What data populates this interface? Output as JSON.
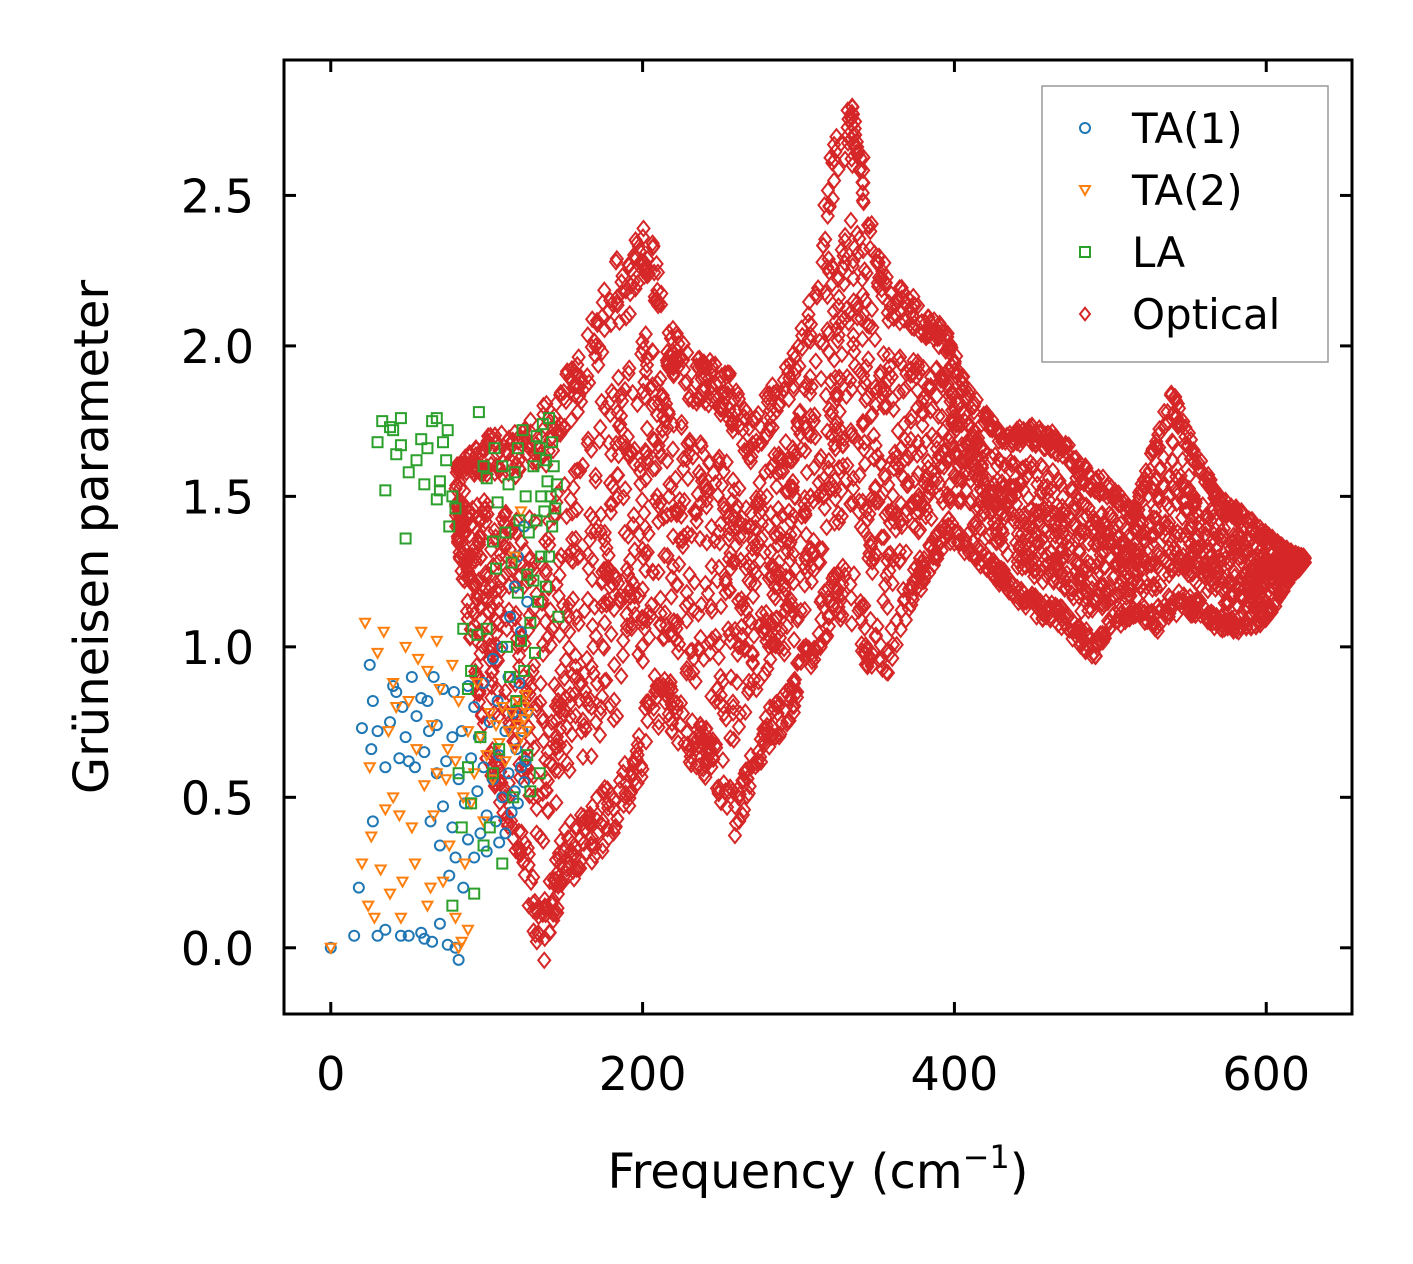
{
  "chart_data": {
    "type": "scatter",
    "xlabel": "Frequency (cm",
    "xlabel_sup": "−1",
    "xlabel_close": ")",
    "ylabel": "Grüneisen parameter",
    "xlim": [
      -30,
      655
    ],
    "ylim": [
      -0.22,
      2.95
    ],
    "xticks": [
      0,
      200,
      400,
      600
    ],
    "xtick_labels": [
      "0",
      "200",
      "400",
      "600"
    ],
    "yticks": [
      0.0,
      0.5,
      1.0,
      1.5,
      2.0,
      2.5
    ],
    "ytick_labels": [
      "0.0",
      "0.5",
      "1.0",
      "1.5",
      "2.0",
      "2.5"
    ],
    "legend_position": "top-right",
    "series": [
      {
        "name": "TA(1)",
        "marker": "circle",
        "color": "#1f77b4",
        "points": [
          [
            0,
            0
          ],
          [
            15,
            0.04
          ],
          [
            18,
            0.2
          ],
          [
            20,
            0.73
          ],
          [
            25,
            0.94
          ],
          [
            26,
            0.66
          ],
          [
            27,
            0.82
          ],
          [
            27,
            0.42
          ],
          [
            30,
            0.72
          ],
          [
            30,
            0.04
          ],
          [
            35,
            0.6
          ],
          [
            35,
            0.06
          ],
          [
            38,
            0.75
          ],
          [
            40,
            0.87
          ],
          [
            42,
            0.85
          ],
          [
            44,
            0.63
          ],
          [
            45,
            0.04
          ],
          [
            46,
            0.8
          ],
          [
            48,
            0.7
          ],
          [
            50,
            0.62
          ],
          [
            50,
            0.04
          ],
          [
            52,
            0.9
          ],
          [
            54,
            0.6
          ],
          [
            55,
            0.77
          ],
          [
            58,
            0.83
          ],
          [
            58,
            0.05
          ],
          [
            60,
            0.65
          ],
          [
            60,
            0.03
          ],
          [
            62,
            0.82
          ],
          [
            63,
            0.72
          ],
          [
            64,
            0.42
          ],
          [
            65,
            0.02
          ],
          [
            66,
            0.9
          ],
          [
            68,
            0.74
          ],
          [
            68,
            0.58
          ],
          [
            70,
            0.08
          ],
          [
            70,
            0.34
          ],
          [
            72,
            0.86
          ],
          [
            72,
            0.47
          ],
          [
            74,
            0.62
          ],
          [
            75,
            0.01
          ],
          [
            76,
            0.24
          ],
          [
            78,
            0.7
          ],
          [
            78,
            0.4
          ],
          [
            79,
            0.85
          ],
          [
            80,
            0.0
          ],
          [
            80,
            0.3
          ],
          [
            82,
            -0.04
          ],
          [
            82,
            0.56
          ],
          [
            84,
            0.72
          ],
          [
            85,
            0.2
          ],
          [
            86,
            0.48
          ],
          [
            88,
            0.87
          ],
          [
            88,
            0.36
          ],
          [
            90,
            0.63
          ],
          [
            92,
            0.3
          ],
          [
            92,
            0.8
          ],
          [
            94,
            0.52
          ],
          [
            95,
            0.7
          ],
          [
            96,
            0.38
          ],
          [
            98,
            0.88
          ],
          [
            98,
            0.6
          ],
          [
            100,
            0.44
          ],
          [
            100,
            0.32
          ],
          [
            102,
            0.75
          ],
          [
            104,
            0.56
          ],
          [
            104,
            0.96
          ],
          [
            106,
            0.42
          ],
          [
            107,
            0.82
          ],
          [
            108,
            0.64
          ],
          [
            108,
            0.35
          ],
          [
            110,
            1.0
          ],
          [
            110,
            0.5
          ],
          [
            112,
            0.72
          ],
          [
            112,
            0.38
          ],
          [
            114,
            0.9
          ],
          [
            114,
            0.58
          ],
          [
            115,
            1.1
          ],
          [
            116,
            0.45
          ],
          [
            117,
            0.78
          ],
          [
            118,
            1.2
          ],
          [
            118,
            0.52
          ],
          [
            119,
            0.66
          ],
          [
            120,
            1.3
          ],
          [
            120,
            0.48
          ],
          [
            121,
            0.88
          ],
          [
            122,
            0.6
          ],
          [
            122,
            1.05
          ],
          [
            123,
            0.72
          ],
          [
            124,
            0.55
          ],
          [
            124,
            1.4
          ],
          [
            125,
            0.62
          ],
          [
            126,
            0.78
          ],
          [
            126,
            1.15
          ]
        ]
      },
      {
        "name": "TA(2)",
        "marker": "triangle-down",
        "color": "#ff7f0e",
        "points": [
          [
            0,
            0
          ],
          [
            20,
            0.28
          ],
          [
            22,
            1.08
          ],
          [
            24,
            0.14
          ],
          [
            25,
            0.6
          ],
          [
            26,
            0.37
          ],
          [
            28,
            0.1
          ],
          [
            30,
            0.98
          ],
          [
            32,
            0.26
          ],
          [
            34,
            1.05
          ],
          [
            35,
            0.46
          ],
          [
            37,
            0.72
          ],
          [
            38,
            0.18
          ],
          [
            40,
            0.5
          ],
          [
            40,
            0.88
          ],
          [
            42,
            0.8
          ],
          [
            44,
            0.44
          ],
          [
            45,
            0.1
          ],
          [
            46,
            0.22
          ],
          [
            48,
            1.0
          ],
          [
            50,
            0.82
          ],
          [
            52,
            0.4
          ],
          [
            54,
            0.28
          ],
          [
            55,
            0.66
          ],
          [
            56,
            0.96
          ],
          [
            58,
            1.05
          ],
          [
            60,
            0.54
          ],
          [
            62,
            0.92
          ],
          [
            62,
            0.14
          ],
          [
            64,
            0.2
          ],
          [
            65,
            0.74
          ],
          [
            66,
            0.44
          ],
          [
            68,
            0.58
          ],
          [
            68,
            1.02
          ],
          [
            70,
            0.86
          ],
          [
            72,
            0.22
          ],
          [
            74,
            0.56
          ],
          [
            75,
            0.66
          ],
          [
            76,
            0.34
          ],
          [
            78,
            0.94
          ],
          [
            80,
            0.62
          ],
          [
            80,
            0.1
          ],
          [
            82,
            0.0
          ],
          [
            82,
            0.82
          ],
          [
            84,
            0.02
          ],
          [
            85,
            0.5
          ],
          [
            86,
            0.28
          ],
          [
            88,
            0.06
          ],
          [
            88,
            0.72
          ],
          [
            90,
            0.48
          ],
          [
            92,
            0.58
          ],
          [
            94,
            0.88
          ],
          [
            96,
            0.7
          ],
          [
            98,
            0.42
          ],
          [
            100,
            0.64
          ],
          [
            102,
            0.78
          ],
          [
            104,
            0.56
          ],
          [
            106,
            0.74
          ],
          [
            108,
            0.68
          ],
          [
            110,
            0.8
          ],
          [
            112,
            0.62
          ],
          [
            114,
            0.72
          ],
          [
            116,
            0.78
          ],
          [
            118,
            0.66
          ],
          [
            118,
            1.3
          ],
          [
            120,
            0.74
          ],
          [
            120,
            0.82
          ],
          [
            122,
            0.7
          ],
          [
            122,
            1.45
          ],
          [
            124,
            0.8
          ],
          [
            124,
            0.76
          ],
          [
            125,
            0.84
          ],
          [
            126,
            0.72
          ],
          [
            127,
            0.78
          ]
        ]
      },
      {
        "name": "LA",
        "marker": "square",
        "color": "#2ca02c",
        "points": [
          [
            30,
            1.68
          ],
          [
            33,
            1.75
          ],
          [
            35,
            1.52
          ],
          [
            38,
            1.73
          ],
          [
            40,
            1.72
          ],
          [
            42,
            1.64
          ],
          [
            45,
            1.76
          ],
          [
            45,
            1.67
          ],
          [
            48,
            1.36
          ],
          [
            50,
            1.58
          ],
          [
            55,
            1.62
          ],
          [
            58,
            1.69
          ],
          [
            60,
            1.54
          ],
          [
            62,
            1.66
          ],
          [
            65,
            1.75
          ],
          [
            68,
            1.76
          ],
          [
            68,
            1.49
          ],
          [
            70,
            1.55
          ],
          [
            70,
            1.52
          ],
          [
            72,
            1.68
          ],
          [
            74,
            1.62
          ],
          [
            75,
            1.72
          ],
          [
            76,
            1.4
          ],
          [
            78,
            1.5
          ],
          [
            78,
            0.14
          ],
          [
            80,
            1.46
          ],
          [
            82,
            0.58
          ],
          [
            84,
            0.4
          ],
          [
            85,
            1.06
          ],
          [
            88,
            0.6
          ],
          [
            88,
            0.86
          ],
          [
            90,
            0.92
          ],
          [
            90,
            0.48
          ],
          [
            92,
            0.18
          ],
          [
            94,
            1.04
          ],
          [
            95,
            1.78
          ],
          [
            96,
            0.7
          ],
          [
            98,
            1.6
          ],
          [
            98,
            0.34
          ],
          [
            100,
            1.56
          ],
          [
            100,
            1.06
          ],
          [
            102,
            0.4
          ],
          [
            104,
            1.35
          ],
          [
            104,
            0.58
          ],
          [
            105,
            1.66
          ],
          [
            106,
            1.26
          ],
          [
            107,
            1.48
          ],
          [
            108,
            0.66
          ],
          [
            110,
            1.6
          ],
          [
            110,
            0.28
          ],
          [
            112,
            1.38
          ],
          [
            113,
            1.0
          ],
          [
            114,
            1.54
          ],
          [
            115,
            0.9
          ],
          [
            116,
            1.28
          ],
          [
            117,
            0.5
          ],
          [
            118,
            1.58
          ],
          [
            119,
            0.82
          ],
          [
            120,
            1.66
          ],
          [
            120,
            1.18
          ],
          [
            121,
            1.42
          ],
          [
            122,
            1.02
          ],
          [
            123,
            1.72
          ],
          [
            124,
            0.92
          ],
          [
            125,
            1.5
          ],
          [
            126,
            1.24
          ],
          [
            126,
            0.64
          ],
          [
            127,
            1.38
          ],
          [
            128,
            1.08
          ],
          [
            128,
            0.52
          ],
          [
            130,
            1.6
          ],
          [
            130,
            1.22
          ],
          [
            131,
            0.98
          ],
          [
            132,
            1.7
          ],
          [
            132,
            1.42
          ],
          [
            133,
            1.15
          ],
          [
            134,
            1.66
          ],
          [
            134,
            0.58
          ],
          [
            135,
            1.5
          ],
          [
            135,
            1.3
          ],
          [
            136,
            1.74
          ],
          [
            137,
            1.45
          ],
          [
            138,
            1.62
          ],
          [
            138,
            1.2
          ],
          [
            139,
            1.55
          ],
          [
            140,
            1.76
          ],
          [
            140,
            1.3
          ],
          [
            141,
            1.5
          ],
          [
            142,
            1.68
          ],
          [
            142,
            1.4
          ],
          [
            143,
            1.6
          ],
          [
            144,
            1.46
          ],
          [
            145,
            1.54
          ],
          [
            146,
            1.1
          ]
        ]
      },
      {
        "name": "Optical",
        "marker": "diamond",
        "color": "#d62728",
        "points": "generated"
      }
    ],
    "optical_envelope": {
      "freq": [
        80,
        100,
        120,
        135,
        150,
        165,
        180,
        190,
        200,
        205,
        215,
        230,
        245,
        255,
        262,
        270,
        280,
        295,
        310,
        320,
        330,
        335,
        340,
        350,
        357,
        365,
        380,
        395,
        410,
        430,
        450,
        470,
        480,
        490,
        500,
        515,
        530,
        540,
        555,
        570,
        585,
        600,
        615,
        625
      ],
      "lower": [
        1.4,
        0.6,
        0.3,
        -0.08,
        0.2,
        0.25,
        0.35,
        0.45,
        0.55,
        0.7,
        0.75,
        0.6,
        0.55,
        0.4,
        0.35,
        0.55,
        0.65,
        0.75,
        0.95,
        1.05,
        1.1,
        1.05,
        0.95,
        0.9,
        0.85,
        1.05,
        1.2,
        1.35,
        1.3,
        1.2,
        1.1,
        1.05,
        1.0,
        0.96,
        1.05,
        1.1,
        1.05,
        1.1,
        1.1,
        1.05,
        1.05,
        1.08,
        1.22,
        1.28
      ],
      "upper": [
        1.6,
        1.7,
        1.72,
        1.8,
        1.9,
        2.05,
        2.3,
        2.3,
        2.45,
        2.42,
        2.1,
        1.98,
        1.95,
        1.92,
        1.85,
        1.75,
        1.85,
        1.95,
        2.2,
        2.65,
        2.78,
        2.8,
        2.72,
        2.35,
        2.25,
        2.2,
        2.15,
        2.05,
        1.85,
        1.72,
        1.75,
        1.7,
        1.62,
        1.58,
        1.55,
        1.45,
        1.72,
        1.86,
        1.65,
        1.5,
        1.45,
        1.38,
        1.32,
        1.3
      ]
    }
  },
  "legend": {
    "items": [
      {
        "label": "TA(1)",
        "color": "#1f77b4",
        "marker": "circle"
      },
      {
        "label": "TA(2)",
        "color": "#ff7f0e",
        "marker": "triangle-down"
      },
      {
        "label": "LA",
        "color": "#2ca02c",
        "marker": "square"
      },
      {
        "label": "Optical",
        "color": "#d62728",
        "marker": "diamond"
      }
    ]
  }
}
